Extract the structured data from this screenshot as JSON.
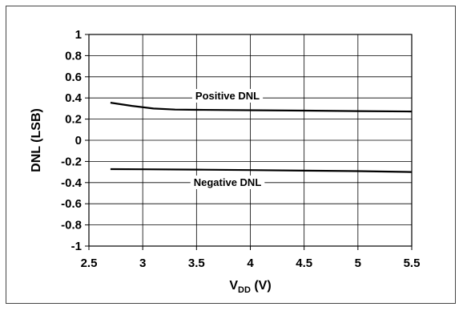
{
  "chart_data": {
    "type": "line",
    "title": "",
    "xlabel_main": "V",
    "xlabel_sub": "DD",
    "xlabel_unit": " (V)",
    "ylabel": "DNL (LSB)",
    "xlim": [
      2.5,
      5.5
    ],
    "ylim": [
      -1,
      1
    ],
    "xticks": [
      "2.5",
      "3",
      "3.5",
      "4",
      "4.5",
      "5",
      "5.5"
    ],
    "yticks": [
      "1",
      "0.8",
      "0.6",
      "0.4",
      "0.2",
      "0",
      "-0.2",
      "-0.4",
      "-0.6",
      "-0.8",
      "-1"
    ],
    "grid": true,
    "series": [
      {
        "name": "Positive DNL",
        "x": [
          2.7,
          2.9,
          3.1,
          3.3,
          3.5,
          4.0,
          4.5,
          5.0,
          5.5
        ],
        "y": [
          0.355,
          0.325,
          0.3,
          0.29,
          0.288,
          0.284,
          0.28,
          0.276,
          0.272
        ]
      },
      {
        "name": "Negative DNL",
        "x": [
          2.7,
          3.0,
          3.5,
          4.0,
          4.5,
          5.0,
          5.5
        ],
        "y": [
          -0.273,
          -0.274,
          -0.277,
          -0.282,
          -0.287,
          -0.292,
          -0.3
        ]
      }
    ]
  }
}
